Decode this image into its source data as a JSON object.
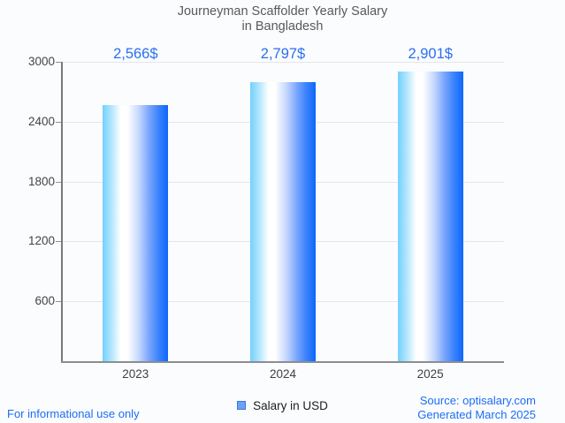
{
  "chart_data": {
    "type": "bar",
    "title_line1": "Journeyman Scaffolder Yearly Salary",
    "title_line2": "in Bangladesh",
    "categories": [
      "2023",
      "2024",
      "2025"
    ],
    "series": [
      {
        "name": "Salary in USD",
        "values": [
          2566,
          2797,
          2901
        ]
      }
    ],
    "value_labels": [
      "2,566$",
      "2,797$",
      "2,901$"
    ],
    "ylim": [
      0,
      3000
    ],
    "yticks": [
      600,
      1200,
      1800,
      2400,
      3000
    ],
    "grid": true,
    "legend_position": "bottom",
    "bar_gradient_left": "#73d0fc",
    "bar_gradient_mid": "#ffffff",
    "bar_gradient_right": "#0d66fb"
  },
  "legend": {
    "label": "Salary in USD",
    "swatch_fill": "#69a2f6",
    "swatch_border": "#4377d6"
  },
  "footer": {
    "left_note": "For informational use only",
    "source": "Source: optisalary.com",
    "generated": "Generated March 2025"
  },
  "colors": {
    "background": "#fbfcfe",
    "title_text": "#57595c",
    "axis_text": "#414447",
    "value_text": "#2a6ff0",
    "footer_text": "#1b6ef3",
    "gridline": "#e4e6e9",
    "axis_line": "#8b8e91"
  }
}
